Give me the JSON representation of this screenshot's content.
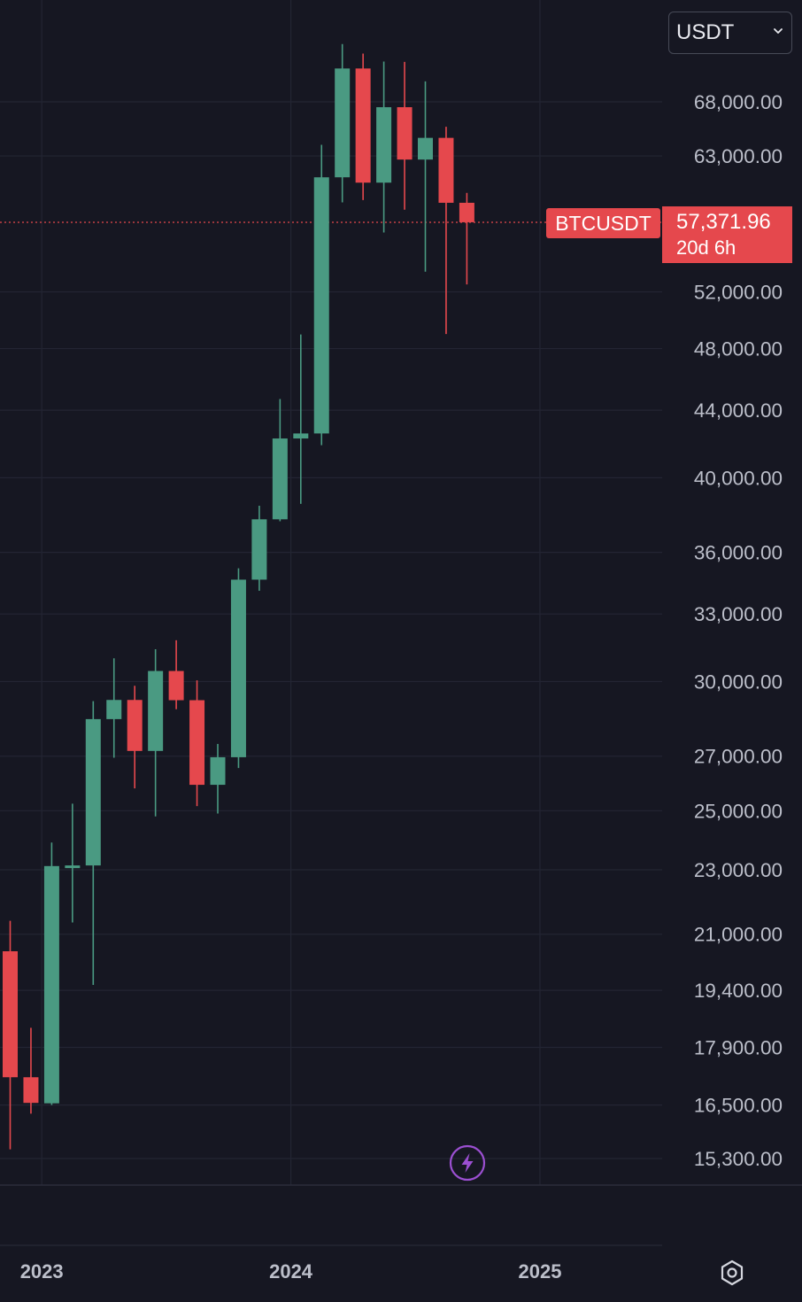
{
  "toolbar": {
    "currency_label": "USDT",
    "currency_icon": "chevron-down-icon"
  },
  "last_price": {
    "symbol": "BTCUSDT",
    "price": "57,371.96",
    "countdown": "20d 6h",
    "color": "#e5484d"
  },
  "colors": {
    "up": "#4a9a82",
    "down": "#e5484d",
    "background": "#161722",
    "grid": "#232533",
    "axis_text": "#bcbfca"
  },
  "icons": {
    "settings": "settings-icon",
    "lightning": "lightning-icon"
  },
  "chart_data": {
    "type": "candlestick",
    "interval": "1M",
    "scale": "log",
    "grid": true,
    "y_axis_ticks": [
      68000,
      63000,
      52000,
      48000,
      44000,
      40000,
      36000,
      33000,
      30000,
      27000,
      25000,
      23000,
      21000,
      19400,
      17900,
      16500,
      15300
    ],
    "y_axis_labels": [
      "68,000.00",
      "63,000.00",
      "52,000.00",
      "48,000.00",
      "44,000.00",
      "40,000.00",
      "36,000.00",
      "33,000.00",
      "30,000.00",
      "27,000.00",
      "25,000.00",
      "23,000.00",
      "21,000.00",
      "19,400.00",
      "17,900.00",
      "16,500.00",
      "15,300.00"
    ],
    "x_axis_labels": [
      "2023",
      "2024",
      "2025"
    ],
    "candles": [
      {
        "date": "2022-11",
        "open": 20500,
        "high": 21400,
        "low": 15500,
        "close": 17160
      },
      {
        "date": "2022-12",
        "open": 17160,
        "high": 18400,
        "low": 16300,
        "close": 16550
      },
      {
        "date": "2023-01",
        "open": 16540,
        "high": 23900,
        "low": 16500,
        "close": 23120
      },
      {
        "date": "2023-02",
        "open": 23120,
        "high": 25250,
        "low": 21350,
        "close": 23140
      },
      {
        "date": "2023-03",
        "open": 23140,
        "high": 29180,
        "low": 19550,
        "close": 28450
      },
      {
        "date": "2023-04",
        "open": 28450,
        "high": 31000,
        "low": 26940,
        "close": 29230
      },
      {
        "date": "2023-05",
        "open": 29230,
        "high": 29820,
        "low": 25800,
        "close": 27200
      },
      {
        "date": "2023-06",
        "open": 27200,
        "high": 31400,
        "low": 24800,
        "close": 30450
      },
      {
        "date": "2023-07",
        "open": 30450,
        "high": 31800,
        "low": 28850,
        "close": 29220
      },
      {
        "date": "2023-08",
        "open": 29220,
        "high": 30050,
        "low": 25160,
        "close": 25930
      },
      {
        "date": "2023-09",
        "open": 25930,
        "high": 27470,
        "low": 24900,
        "close": 26960
      },
      {
        "date": "2023-10",
        "open": 26960,
        "high": 35200,
        "low": 26550,
        "close": 34640
      },
      {
        "date": "2023-11",
        "open": 34640,
        "high": 38450,
        "low": 34100,
        "close": 37720
      },
      {
        "date": "2023-12",
        "open": 37720,
        "high": 44700,
        "low": 37620,
        "close": 42280
      },
      {
        "date": "2024-01",
        "open": 42280,
        "high": 48970,
        "low": 38550,
        "close": 42580
      },
      {
        "date": "2024-02",
        "open": 42580,
        "high": 64000,
        "low": 41880,
        "close": 61130
      },
      {
        "date": "2024-03",
        "open": 61130,
        "high": 73780,
        "low": 59000,
        "close": 71280
      },
      {
        "date": "2024-04",
        "open": 71280,
        "high": 72800,
        "low": 59200,
        "close": 60670
      },
      {
        "date": "2024-05",
        "open": 60670,
        "high": 71980,
        "low": 56550,
        "close": 67490
      },
      {
        "date": "2024-06",
        "open": 67490,
        "high": 71950,
        "low": 58400,
        "close": 62680
      },
      {
        "date": "2024-07",
        "open": 62680,
        "high": 70000,
        "low": 53500,
        "close": 64630
      },
      {
        "date": "2024-08",
        "open": 64630,
        "high": 65650,
        "low": 49000,
        "close": 58970
      },
      {
        "date": "2024-09",
        "open": 58970,
        "high": 59800,
        "low": 52550,
        "close": 57371.96
      }
    ]
  }
}
